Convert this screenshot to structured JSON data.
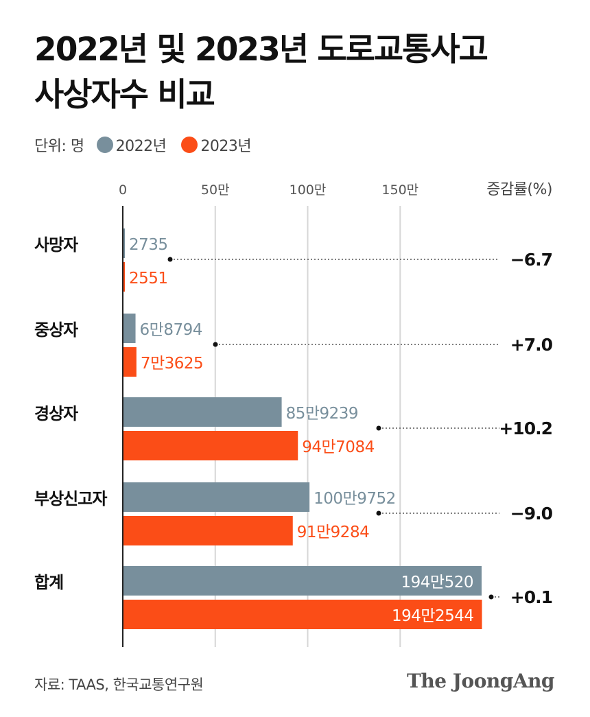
{
  "title": {
    "line1": "2022년 및 2023년 도로교통사고",
    "line2": "사상자수 비교"
  },
  "legend": {
    "unit": "단위: 명",
    "s1": "2022년",
    "s2": "2023년"
  },
  "colors": {
    "s2022": "#788f9c",
    "s2023": "#fb4d17",
    "grid": "#d6d6d6",
    "axis": "#222222",
    "text": "#111111"
  },
  "source": "자료: TAAS, 한국교통연구원",
  "brand": "The JoongAng",
  "chart_data": {
    "type": "bar",
    "orientation": "horizontal",
    "categories": [
      "사망자",
      "중상자",
      "경상자",
      "부상신고자",
      "합계"
    ],
    "series": [
      {
        "name": "2022년",
        "values": [
          2735,
          68794,
          859239,
          1009752,
          1940520
        ],
        "labels": [
          "2735",
          "6만8794",
          "85만9239",
          "100만9752",
          "194만520"
        ]
      },
      {
        "name": "2023년",
        "values": [
          2551,
          73625,
          947084,
          919284,
          1942544
        ],
        "labels": [
          "2551",
          "7만3625",
          "94만7084",
          "91만9284",
          "194만2544"
        ]
      }
    ],
    "change_title": "증감률(%)",
    "change": [
      "−6.7",
      "+7.0",
      "+10.2",
      "−9.0",
      "+0.1"
    ],
    "xticks": [
      0,
      500000,
      1000000,
      1500000
    ],
    "xtick_labels": [
      "0",
      "50만",
      "100만",
      "150만"
    ],
    "xlim": [
      0,
      1940520
    ],
    "grid": true,
    "legend_position": "top-left"
  }
}
